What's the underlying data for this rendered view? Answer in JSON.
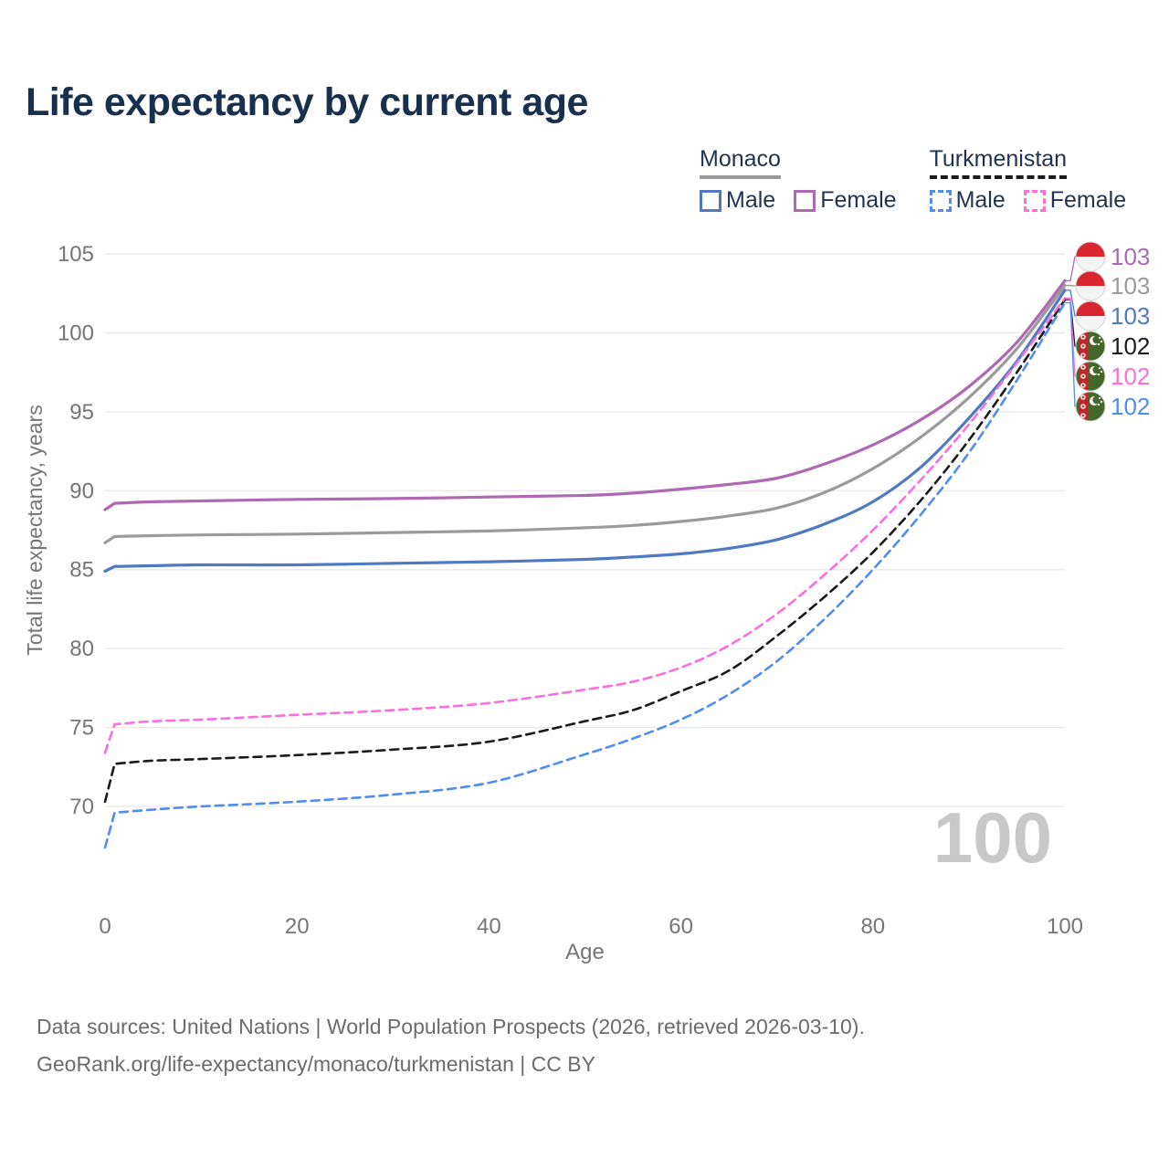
{
  "title": "Life expectancy by current age",
  "legend": {
    "monaco": {
      "title": "Monaco",
      "male": "Male",
      "female": "Female"
    },
    "turkmenistan": {
      "title": "Turkmenistan",
      "male": "Male",
      "female": "Female"
    }
  },
  "age_watermark": "100",
  "footer": {
    "line1": "Data sources: United Nations | World Population Prospects (2026, retrieved 2026-03-10).",
    "line2": "GeoRank.org/life-expectancy/monaco/turkmenistan | CC BY"
  },
  "colors": {
    "title_text": "#17304e",
    "legend_text": "#1e3251",
    "axis_text": "#757575",
    "grid": "#e8e8e8",
    "watermark": "#c8c8c8",
    "footer_text": "#6b6b6b",
    "monaco_flag_red": "#d8252f",
    "monaco_flag_white": "#f4f4f4",
    "turkmenistan_flag_green": "#45682a",
    "turkmenistan_flag_red": "#bf2730"
  },
  "chart_data": {
    "type": "line",
    "title": "Life expectancy by current age",
    "xlabel": "Age",
    "ylabel": "Total life expectancy, years",
    "xlim": [
      0,
      100
    ],
    "ylim": [
      66.5,
      105.5
    ],
    "xticks": [
      0,
      20,
      40,
      60,
      80,
      100
    ],
    "yticks": [
      70,
      75,
      80,
      85,
      90,
      95,
      100,
      105
    ],
    "grid": "horizontal-only",
    "legend_position": "top-right",
    "current_age_indicator": "100",
    "x": [
      0,
      1,
      5,
      10,
      20,
      30,
      40,
      50,
      55,
      60,
      65,
      70,
      75,
      80,
      85,
      90,
      95,
      100
    ],
    "series": [
      {
        "id": "monaco-female",
        "name": "Monaco Female",
        "color": "#ae68b4",
        "dash": false,
        "flag": "monaco",
        "end_label": "103",
        "values": [
          88.8,
          89.2,
          89.3,
          89.35,
          89.45,
          89.5,
          89.6,
          89.7,
          89.85,
          90.1,
          90.4,
          90.8,
          91.7,
          92.9,
          94.5,
          96.6,
          99.4,
          103.3
        ]
      },
      {
        "id": "monaco-both",
        "name": "Monaco Both sexes",
        "color": "#9a9a9a",
        "dash": false,
        "flag": "monaco",
        "end_label": "103",
        "values": [
          86.7,
          87.1,
          87.15,
          87.2,
          87.25,
          87.35,
          87.45,
          87.65,
          87.8,
          88.05,
          88.4,
          88.9,
          89.9,
          91.4,
          93.4,
          95.9,
          99.0,
          103.0
        ]
      },
      {
        "id": "monaco-male",
        "name": "Monaco Male",
        "color": "#4f7ac2",
        "dash": false,
        "flag": "monaco",
        "end_label": "103",
        "values": [
          84.9,
          85.2,
          85.25,
          85.3,
          85.3,
          85.4,
          85.5,
          85.65,
          85.8,
          86.0,
          86.35,
          86.9,
          87.9,
          89.3,
          91.5,
          94.6,
          98.2,
          102.7
        ]
      },
      {
        "id": "turkmenistan-both",
        "name": "Turkmenistan Both sexes",
        "color": "#1a1a1a",
        "dash": true,
        "flag": "turkmenistan",
        "end_label": "102",
        "values": [
          70.3,
          72.7,
          72.9,
          73.0,
          73.25,
          73.6,
          74.1,
          75.4,
          76.1,
          77.3,
          78.6,
          80.8,
          83.3,
          86.1,
          89.4,
          93.2,
          97.5,
          102.1
        ]
      },
      {
        "id": "turkmenistan-female",
        "name": "Turkmenistan Female",
        "color": "#fc6ee0",
        "dash": true,
        "flag": "turkmenistan",
        "end_label": "102",
        "values": [
          73.4,
          75.2,
          75.4,
          75.5,
          75.8,
          76.1,
          76.55,
          77.4,
          77.9,
          78.8,
          80.2,
          82.2,
          84.7,
          87.5,
          90.7,
          94.2,
          98.1,
          102.2
        ]
      },
      {
        "id": "turkmenistan-male",
        "name": "Turkmenistan Male",
        "color": "#4f8df0",
        "dash": true,
        "flag": "turkmenistan",
        "end_label": "102",
        "values": [
          67.4,
          69.6,
          69.8,
          70.0,
          70.3,
          70.75,
          71.5,
          73.3,
          74.3,
          75.5,
          77.1,
          79.2,
          81.9,
          85.0,
          88.5,
          92.4,
          97.0,
          101.9
        ]
      }
    ]
  }
}
